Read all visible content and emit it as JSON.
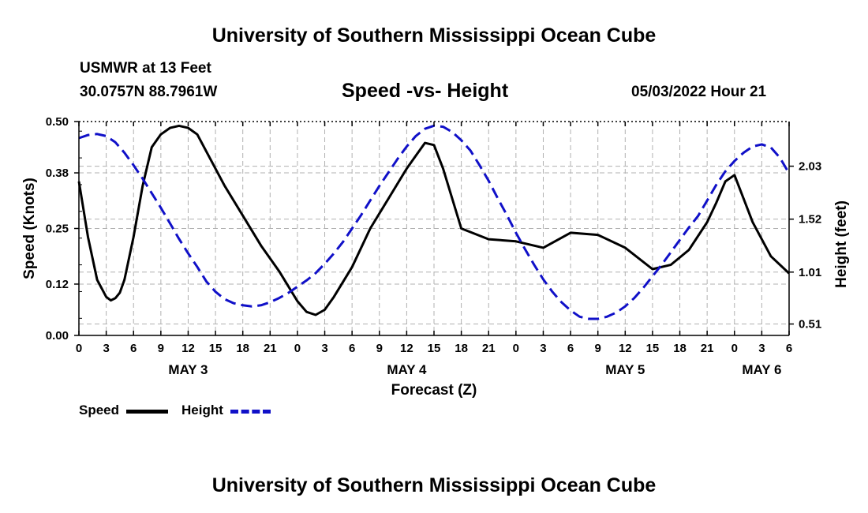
{
  "header": {
    "title": "University of Southern Mississippi Ocean Cube",
    "station": "USMWR at 13 Feet",
    "coordinates": "30.0757N  88.7961W",
    "subtitle": "Speed -vs- Height",
    "datetime": "05/03/2022 Hour 21"
  },
  "footer": {
    "title": "University of Southern Mississippi Ocean Cube"
  },
  "legend": {
    "speed_label": "Speed",
    "height_label": "Height"
  },
  "colors": {
    "speed": "#000000",
    "height": "#1010c8",
    "grid": "#b0b0b0"
  },
  "chart_data": {
    "type": "line",
    "xlabel": "Forecast (Z)",
    "ylabel_left": "Speed (Knots)",
    "ylabel_right": "Height (feet)",
    "x_unit": "hours from May 3 00Z",
    "xlim": [
      0,
      78
    ],
    "ylim_left": [
      0,
      0.5
    ],
    "ylim_right": [
      0.4,
      2.46
    ],
    "grid": true,
    "legend_position": "bottom-left",
    "x_ticks": [
      0,
      3,
      6,
      9,
      12,
      15,
      18,
      21,
      24,
      27,
      30,
      33,
      36,
      39,
      42,
      45,
      48,
      51,
      54,
      57,
      60,
      63,
      66,
      69,
      72,
      75,
      78
    ],
    "x_tick_labels": [
      "0",
      "3",
      "6",
      "9",
      "12",
      "15",
      "18",
      "21",
      "0",
      "3",
      "6",
      "9",
      "12",
      "15",
      "18",
      "21",
      "0",
      "3",
      "6",
      "9",
      "12",
      "15",
      "18",
      "21",
      "0",
      "3",
      "6"
    ],
    "date_labels": [
      {
        "label": "MAY 3",
        "hour": 12
      },
      {
        "label": "MAY 4",
        "hour": 36
      },
      {
        "label": "MAY 5",
        "hour": 60
      },
      {
        "label": "MAY 6",
        "hour": 75
      }
    ],
    "y_left_ticks": [
      0.0,
      0.12,
      0.25,
      0.38,
      0.5
    ],
    "y_left_tick_labels": [
      "0.00",
      "0.12",
      "0.25",
      "0.38",
      "0.50"
    ],
    "y_right_ticks": [
      0.51,
      1.01,
      1.52,
      2.03
    ],
    "y_right_tick_labels": [
      "0.51",
      "1.01",
      "1.52",
      "2.03"
    ],
    "series": [
      {
        "name": "Speed",
        "axis": "left",
        "style": "solid",
        "x": [
          0,
          1,
          2,
          3,
          3.5,
          4,
          4.5,
          5,
          6,
          7,
          8,
          9,
          10,
          11,
          12,
          13,
          14,
          16,
          18,
          20,
          22,
          24,
          25,
          26,
          27,
          28,
          30,
          32,
          34,
          36,
          37,
          38,
          39,
          40,
          42,
          45,
          48,
          51,
          54,
          57,
          60,
          63,
          65,
          67,
          69,
          70,
          71,
          72,
          74,
          76,
          78
        ],
        "y": [
          0.36,
          0.23,
          0.13,
          0.09,
          0.082,
          0.087,
          0.1,
          0.13,
          0.23,
          0.35,
          0.44,
          0.47,
          0.485,
          0.49,
          0.485,
          0.47,
          0.43,
          0.35,
          0.28,
          0.21,
          0.15,
          0.08,
          0.055,
          0.048,
          0.06,
          0.09,
          0.16,
          0.25,
          0.32,
          0.39,
          0.42,
          0.45,
          0.445,
          0.39,
          0.25,
          0.225,
          0.22,
          0.205,
          0.24,
          0.235,
          0.205,
          0.155,
          0.165,
          0.2,
          0.265,
          0.31,
          0.36,
          0.375,
          0.265,
          0.185,
          0.145
        ]
      },
      {
        "name": "Height",
        "axis": "right",
        "style": "dashed",
        "x": [
          0,
          1,
          2,
          3,
          4,
          5,
          6,
          7,
          8,
          9,
          10,
          11,
          12,
          13,
          14,
          15,
          16,
          17,
          18,
          19,
          20,
          21,
          22,
          23,
          24,
          25,
          26,
          27,
          28,
          29,
          30,
          31,
          32,
          33,
          34,
          35,
          36,
          37,
          38,
          39,
          40,
          41,
          42,
          43,
          44,
          45,
          46,
          47,
          48,
          49,
          50,
          51,
          52,
          53,
          54,
          55,
          56,
          57,
          58,
          59,
          60,
          61,
          62,
          63,
          64,
          65,
          66,
          67,
          68,
          69,
          70,
          71,
          72,
          73,
          74,
          75,
          76,
          77,
          78
        ],
        "y": [
          2.3,
          2.33,
          2.34,
          2.32,
          2.26,
          2.16,
          2.04,
          1.91,
          1.77,
          1.63,
          1.48,
          1.33,
          1.19,
          1.06,
          0.92,
          0.82,
          0.75,
          0.71,
          0.69,
          0.68,
          0.69,
          0.72,
          0.76,
          0.81,
          0.87,
          0.93,
          1.0,
          1.09,
          1.19,
          1.3,
          1.43,
          1.56,
          1.7,
          1.84,
          1.97,
          2.1,
          2.22,
          2.32,
          2.39,
          2.42,
          2.41,
          2.36,
          2.28,
          2.18,
          2.04,
          1.89,
          1.72,
          1.56,
          1.39,
          1.23,
          1.08,
          0.94,
          0.82,
          0.72,
          0.64,
          0.58,
          0.56,
          0.56,
          0.58,
          0.62,
          0.68,
          0.76,
          0.86,
          0.97,
          1.08,
          1.2,
          1.32,
          1.44,
          1.55,
          1.7,
          1.85,
          1.98,
          2.08,
          2.16,
          2.22,
          2.24,
          2.21,
          2.11,
          1.96
        ]
      }
    ]
  }
}
